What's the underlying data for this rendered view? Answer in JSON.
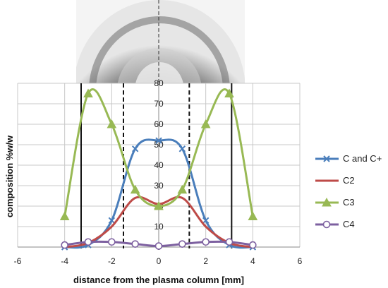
{
  "chart_data": {
    "type": "line",
    "title": "",
    "xlabel": "distance from the plasma column [mm]",
    "ylabel": "composition %w/w",
    "xlim": [
      -6,
      6
    ],
    "ylim": [
      0,
      80
    ],
    "xticks": [
      "-6",
      "-4",
      "-2",
      "0",
      "2",
      "4",
      "6"
    ],
    "yticks": [
      "0",
      "10",
      "20",
      "30",
      "40",
      "50",
      "60",
      "70",
      "80"
    ],
    "grid": true,
    "legend_position": "right",
    "x": [
      -4,
      -3,
      -2,
      -1,
      0,
      1,
      2,
      3,
      4
    ],
    "series": [
      {
        "name": "C and C+",
        "color": "#4a7ebb",
        "marker": "x",
        "values": [
          0,
          1,
          13,
          48,
          52,
          48,
          13,
          1,
          0
        ]
      },
      {
        "name": "C2",
        "color": "#be4b48",
        "marker": "none",
        "values": [
          0,
          2,
          10,
          24,
          21,
          24,
          10,
          2,
          0
        ]
      },
      {
        "name": "C3",
        "color": "#98b954",
        "marker": "triangle",
        "values": [
          15,
          75,
          60,
          28,
          20,
          28,
          60,
          75,
          15
        ]
      },
      {
        "name": "C4",
        "color": "#7d60a0",
        "marker": "circle",
        "values": [
          1,
          2.5,
          2.5,
          1.5,
          0.5,
          1.5,
          2.5,
          2.5,
          1
        ]
      }
    ],
    "annotations": {
      "solid_vertical_lines_x": [
        -3.3,
        3.1
      ],
      "dashed_vertical_lines_x": [
        -1.5,
        1.3
      ],
      "center_line_x": 0
    },
    "inset_image": "plasma-column-cross-section-photo"
  }
}
